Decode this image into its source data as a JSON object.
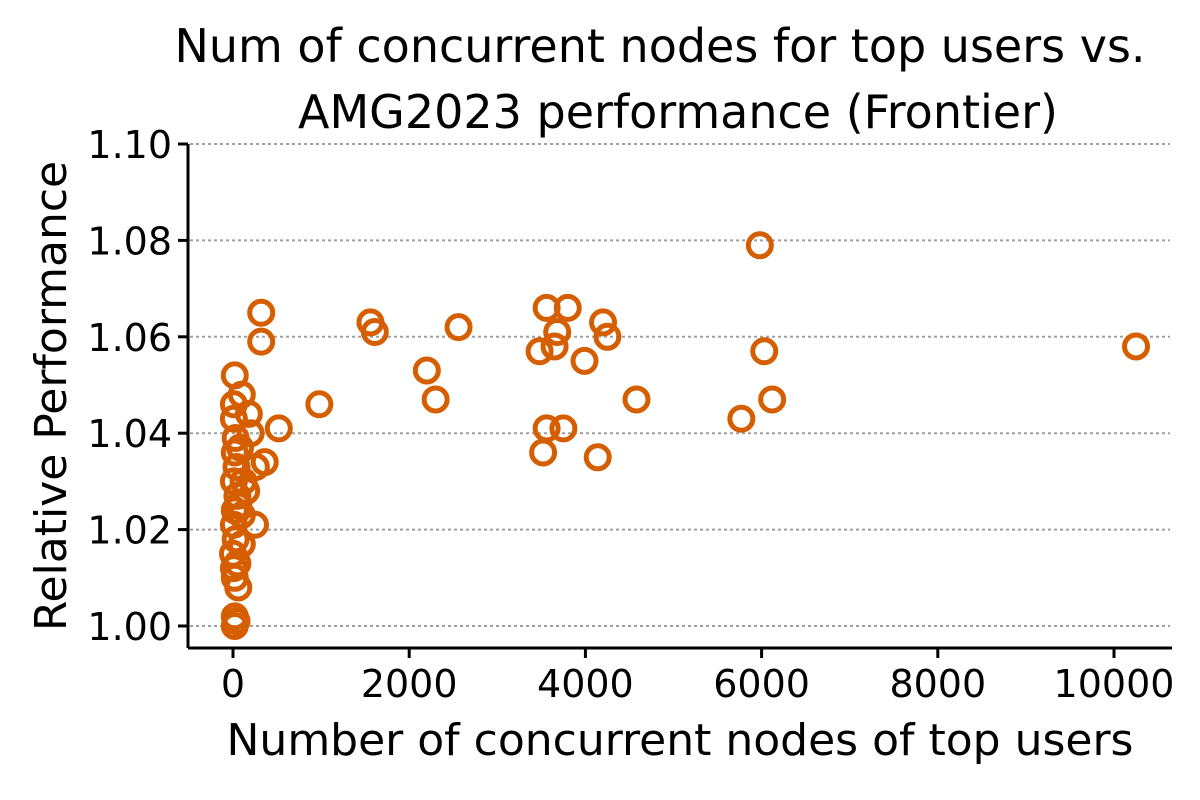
{
  "chart_data": {
    "type": "scatter",
    "title": "Num of concurrent nodes for top users vs. AMG2023 performance (Frontier)",
    "title_lines": [
      "Num of concurrent nodes for top users vs.",
      "AMG2023 performance (Frontier)"
    ],
    "xlabel": "Number of concurrent nodes of top users",
    "ylabel": "Relative Performance",
    "xlim": [
      -500,
      10700
    ],
    "ylim": [
      0.995,
      1.1
    ],
    "xticks": [
      0,
      2000,
      4000,
      6000,
      8000,
      10000
    ],
    "xtick_labels": [
      "0",
      "2000",
      "4000",
      "6000",
      "8000",
      "10000"
    ],
    "yticks": [
      1.0,
      1.02,
      1.04,
      1.06,
      1.08,
      1.1
    ],
    "ytick_labels": [
      "1.00",
      "1.02",
      "1.04",
      "1.06",
      "1.08",
      "1.10"
    ],
    "grid": "horizontal dotted",
    "legend": null,
    "marker": "hollow circle",
    "color": "#d55e00",
    "series": [
      {
        "name": "top users",
        "points": [
          [
            5980,
            1.079
          ],
          [
            10250,
            1.058
          ],
          [
            6030,
            1.057
          ],
          [
            6120,
            1.047
          ],
          [
            5770,
            1.043
          ],
          [
            3560,
            1.066
          ],
          [
            3800,
            1.066
          ],
          [
            4200,
            1.063
          ],
          [
            4250,
            1.06
          ],
          [
            3680,
            1.061
          ],
          [
            3650,
            1.058
          ],
          [
            3480,
            1.057
          ],
          [
            3990,
            1.055
          ],
          [
            4580,
            1.047
          ],
          [
            3560,
            1.041
          ],
          [
            3750,
            1.041
          ],
          [
            3520,
            1.036
          ],
          [
            4140,
            1.035
          ],
          [
            1560,
            1.063
          ],
          [
            1610,
            1.061
          ],
          [
            2560,
            1.062
          ],
          [
            2200,
            1.053
          ],
          [
            2300,
            1.047
          ],
          [
            980,
            1.046
          ],
          [
            320,
            1.065
          ],
          [
            320,
            1.059
          ],
          [
            520,
            1.041
          ],
          [
            360,
            1.034
          ],
          [
            20,
            1.052
          ],
          [
            100,
            1.048
          ],
          [
            180,
            1.044
          ],
          [
            200,
            1.04
          ],
          [
            260,
            1.033
          ],
          [
            250,
            1.021
          ],
          [
            100,
            1.017
          ],
          [
            50,
            1.013
          ],
          [
            60,
            1.008
          ],
          [
            20,
            1.002
          ],
          [
            20,
            1.0
          ],
          [
            40,
            1.001
          ],
          [
            10,
            1.046
          ],
          [
            10,
            1.043
          ],
          [
            30,
            1.039
          ],
          [
            20,
            1.036
          ],
          [
            40,
            1.033
          ],
          [
            10,
            1.03
          ],
          [
            50,
            1.027
          ],
          [
            20,
            1.024
          ],
          [
            10,
            1.021
          ],
          [
            30,
            1.018
          ],
          [
            0,
            1.015
          ],
          [
            10,
            1.012
          ],
          [
            20,
            1.01
          ],
          [
            80,
            1.037
          ],
          [
            120,
            1.03
          ],
          [
            60,
            1.025
          ],
          [
            150,
            1.028
          ],
          [
            100,
            1.023
          ]
        ]
      }
    ]
  }
}
